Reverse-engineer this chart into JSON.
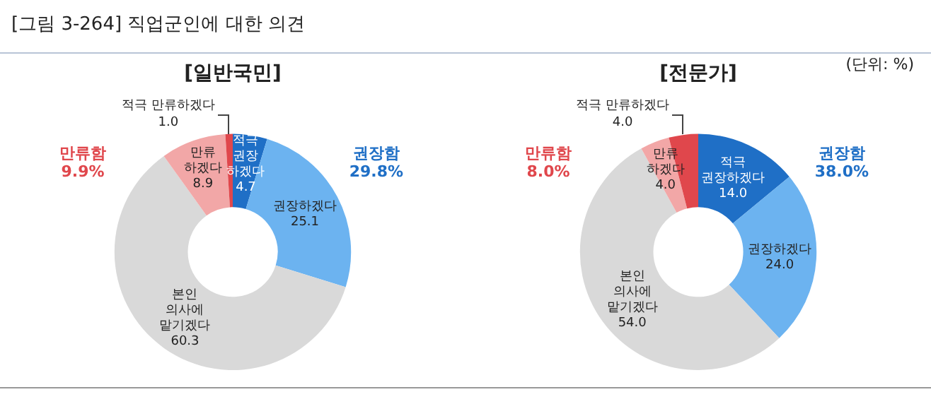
{
  "chart_data": [
    {
      "type": "donut",
      "title": "[일반국민]",
      "categories": [
        "적극 권장하겠다",
        "권장하겠다",
        "본인 의사에 맡기겠다",
        "만류하겠다",
        "적극 만류하겠다"
      ],
      "values": [
        4.7,
        25.1,
        60.3,
        8.9,
        1.0
      ],
      "value_labels": [
        "4.7",
        "25.1",
        "60.3",
        "8.9",
        "1.0"
      ],
      "colors": [
        "#1f6fc6",
        "#6cb3f0",
        "#d9d9d9",
        "#f2a7a7",
        "#e0474c"
      ],
      "annotations": [
        "[그림 3-264]  직업군인에 대한 의견",
        "만류함\n9.9%",
        "권장함\n29.8%"
      ]
    },
    {
      "type": "donut",
      "title": "[전문가]",
      "categories": [
        "적극 권장하겠다",
        "권장하겠다",
        "본인 의사에 맡기겠다",
        "만류하겠다",
        "적극 만류하겠다"
      ],
      "values": [
        14.0,
        24.0,
        54.0,
        4.0,
        4.0
      ],
      "value_labels": [
        "14.0",
        "24.0",
        "54.0",
        "4.0",
        "4.0"
      ],
      "colors": [
        "#1f6fc6",
        "#6cb3f0",
        "#d9d9d9",
        "#f2a7a7",
        "#e0474c"
      ],
      "annotations": [
        "(단위:  %)",
        "만류함\n8.0%",
        "권장함\n38.0%"
      ]
    }
  ]
}
